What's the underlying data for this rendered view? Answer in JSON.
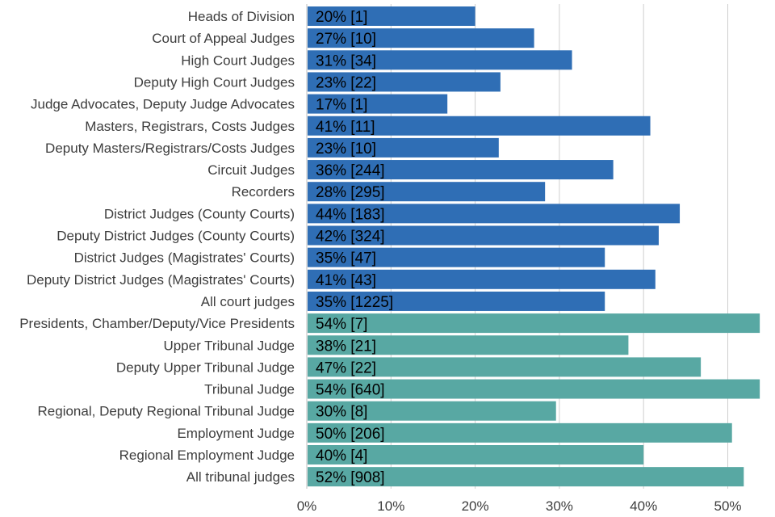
{
  "chart_data": {
    "type": "bar",
    "orientation": "horizontal",
    "title": "",
    "xlabel": "",
    "ylabel": "",
    "xlim": [
      0,
      55
    ],
    "x_ticks": [
      0,
      10,
      20,
      30,
      40,
      50
    ],
    "x_tick_labels": [
      "0%",
      "10%",
      "20%",
      "30%",
      "40%",
      "50%"
    ],
    "grid": "vertical",
    "legend": "none",
    "colors": {
      "court": "#2f6eb5",
      "tribunal": "#58a8a3"
    },
    "categories": [
      "Heads of Division",
      "Court of Appeal Judges",
      "High Court Judges",
      "Deputy High Court Judges",
      "Judge Advocates, Deputy Judge Advocates",
      "Masters, Registrars, Costs Judges",
      "Deputy Masters/Registrars/Costs Judges",
      "Circuit Judges",
      "Recorders",
      "District Judges (County Courts)",
      "Deputy District Judges (County Courts)",
      "District Judges (Magistrates' Courts)",
      "Deputy District Judges (Magistrates' Courts)",
      "All court judges",
      "Presidents, Chamber/Deputy/Vice Presidents",
      "Upper Tribunal Judge",
      "Deputy Upper Tribunal Judge",
      "Tribunal Judge",
      "Regional, Deputy Regional Tribunal Judge",
      "Employment Judge",
      "Regional Employment Judge",
      "All tribunal judges"
    ],
    "values": [
      20,
      27,
      31.5,
      23,
      16.7,
      40.8,
      22.8,
      36.4,
      28.3,
      44.3,
      41.8,
      35.4,
      41.4,
      35.4,
      53.8,
      38.2,
      46.8,
      53.8,
      29.6,
      50.5,
      40,
      51.9
    ],
    "groups": [
      "court",
      "court",
      "court",
      "court",
      "court",
      "court",
      "court",
      "court",
      "court",
      "court",
      "court",
      "court",
      "court",
      "court",
      "tribunal",
      "tribunal",
      "tribunal",
      "tribunal",
      "tribunal",
      "tribunal",
      "tribunal",
      "tribunal"
    ],
    "data_labels": [
      "20% [1]",
      "27% [10]",
      "31% [34]",
      "23% [22]",
      "17% [1]",
      "41% [11]",
      "23% [10]",
      "36% [244]",
      "28% [295]",
      "44% [183]",
      "42% [324]",
      "35% [47]",
      "41% [43]",
      "35% [1225]",
      "54% [7]",
      "38% [21]",
      "47% [22]",
      "54% [640]",
      "30% [8]",
      "50% [206]",
      "40% [4]",
      "52% [908]"
    ]
  }
}
